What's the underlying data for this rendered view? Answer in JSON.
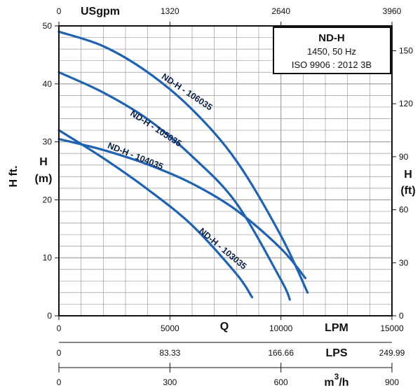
{
  "chart_data": {
    "type": "line",
    "x_axis": {
      "unit": "LPM",
      "range": [
        0,
        15000
      ],
      "ticks": [
        "0",
        "5000",
        "10000",
        "15000"
      ]
    },
    "y_axis": {
      "unit": "m",
      "range": [
        0,
        50
      ],
      "ticks": [
        "0",
        "10",
        "20",
        "30",
        "40",
        "50"
      ]
    },
    "axis_labels": {
      "q": "Q",
      "h_m": "H",
      "h_m_unit": "(m)",
      "h_ft": "H",
      "h_ft_unit": "(ft)",
      "h_ft_side": "H ft."
    },
    "secondary_axes": {
      "usgpm": {
        "unit": "USgpm",
        "ticks": [
          "0",
          "1320",
          "2640",
          "3960"
        ]
      },
      "lps": {
        "unit": "LPS",
        "ticks": [
          "0",
          "83.33",
          "166.66",
          "249.99"
        ]
      },
      "m3h": {
        "unit": "m",
        "unit_sup": "3",
        "unit_suffix": "/h",
        "ticks": [
          "0",
          "300",
          "600",
          "900"
        ]
      },
      "ft": {
        "ticks": [
          "0",
          "30",
          "60",
          "90",
          "120",
          "150"
        ]
      }
    },
    "legend_box": {
      "title": "ND-H",
      "line1": "1450, 50 Hz",
      "line2": "ISO 9906 : 2012 3B",
      "placement": "top-right"
    },
    "grid": true,
    "colors": {
      "curve": "#1f63b0",
      "grid": "#9a9a9a",
      "axes": "#111111"
    },
    "series": [
      {
        "name": "ND-H - 106035",
        "x": [
          0,
          2000,
          4000,
          6000,
          8000,
          10000,
          11200
        ],
        "y": [
          49,
          46.5,
          42,
          35.6,
          26.7,
          13.8,
          4
        ]
      },
      {
        "name": "ND-H - 105035",
        "x": [
          0,
          2000,
          4000,
          6000,
          8000,
          10000,
          10400
        ],
        "y": [
          42,
          38.5,
          33.9,
          27.5,
          19.4,
          6.2,
          2.8
        ]
      },
      {
        "name": "ND-H - 104035",
        "x": [
          0,
          2000,
          4000,
          6000,
          8000,
          10000,
          11100
        ],
        "y": [
          30.5,
          28.6,
          26.1,
          22.8,
          18.2,
          11.6,
          6.5
        ]
      },
      {
        "name": "ND-H - 103035",
        "x": [
          0,
          2000,
          4000,
          6000,
          8000,
          8700
        ],
        "y": [
          32,
          27.2,
          21.8,
          15.6,
          7.2,
          3.2
        ]
      }
    ]
  }
}
